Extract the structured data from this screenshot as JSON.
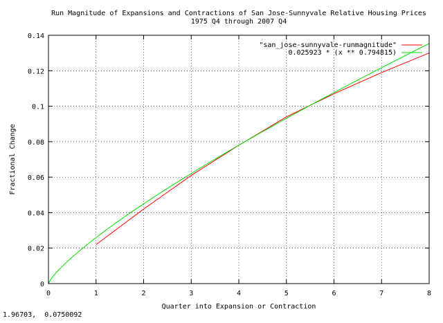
{
  "status_readout": "1.96703,  0.0750092",
  "chart_data": {
    "type": "line",
    "title": "Run Magnitude of Expansions and Contractions of San Jose-Sunnyvale Relative Housing Prices",
    "subtitle": "1975 Q4 through 2007 Q4",
    "xlabel": "Quarter into Expansion or Contraction",
    "ylabel": "Fractional Change",
    "xlim": [
      0,
      8
    ],
    "ylim": [
      0,
      0.14
    ],
    "x_ticks": [
      0,
      1,
      2,
      3,
      4,
      5,
      6,
      7,
      8
    ],
    "x_tick_labels": [
      "0",
      "1",
      "2",
      "3",
      "4",
      "5",
      "6",
      "7",
      "8"
    ],
    "y_ticks": [
      0,
      0.02,
      0.04,
      0.06,
      0.08,
      0.1,
      0.12,
      0.14
    ],
    "y_tick_labels": [
      "0",
      "0.02",
      "0.04",
      "0.06",
      "0.08",
      "0.1",
      "0.12",
      "0.14"
    ],
    "grid": true,
    "grid_style": "dotted",
    "legend_position": "top-right",
    "series": [
      {
        "name": "\"san_jose-sunnyvale-runmagnitude\"",
        "color": "#ff0000",
        "x": [
          1,
          2,
          3,
          4,
          5,
          6,
          7,
          8
        ],
        "y": [
          0.022,
          0.042,
          0.061,
          0.078,
          0.094,
          0.107,
          0.119,
          0.13
        ]
      },
      {
        "name": "0.025923 * (x ** 0.794815)",
        "color": "#00dd00",
        "function": {
          "coefficient": 0.025923,
          "exponent": 0.794815
        },
        "x_range": [
          0,
          8
        ]
      }
    ]
  }
}
